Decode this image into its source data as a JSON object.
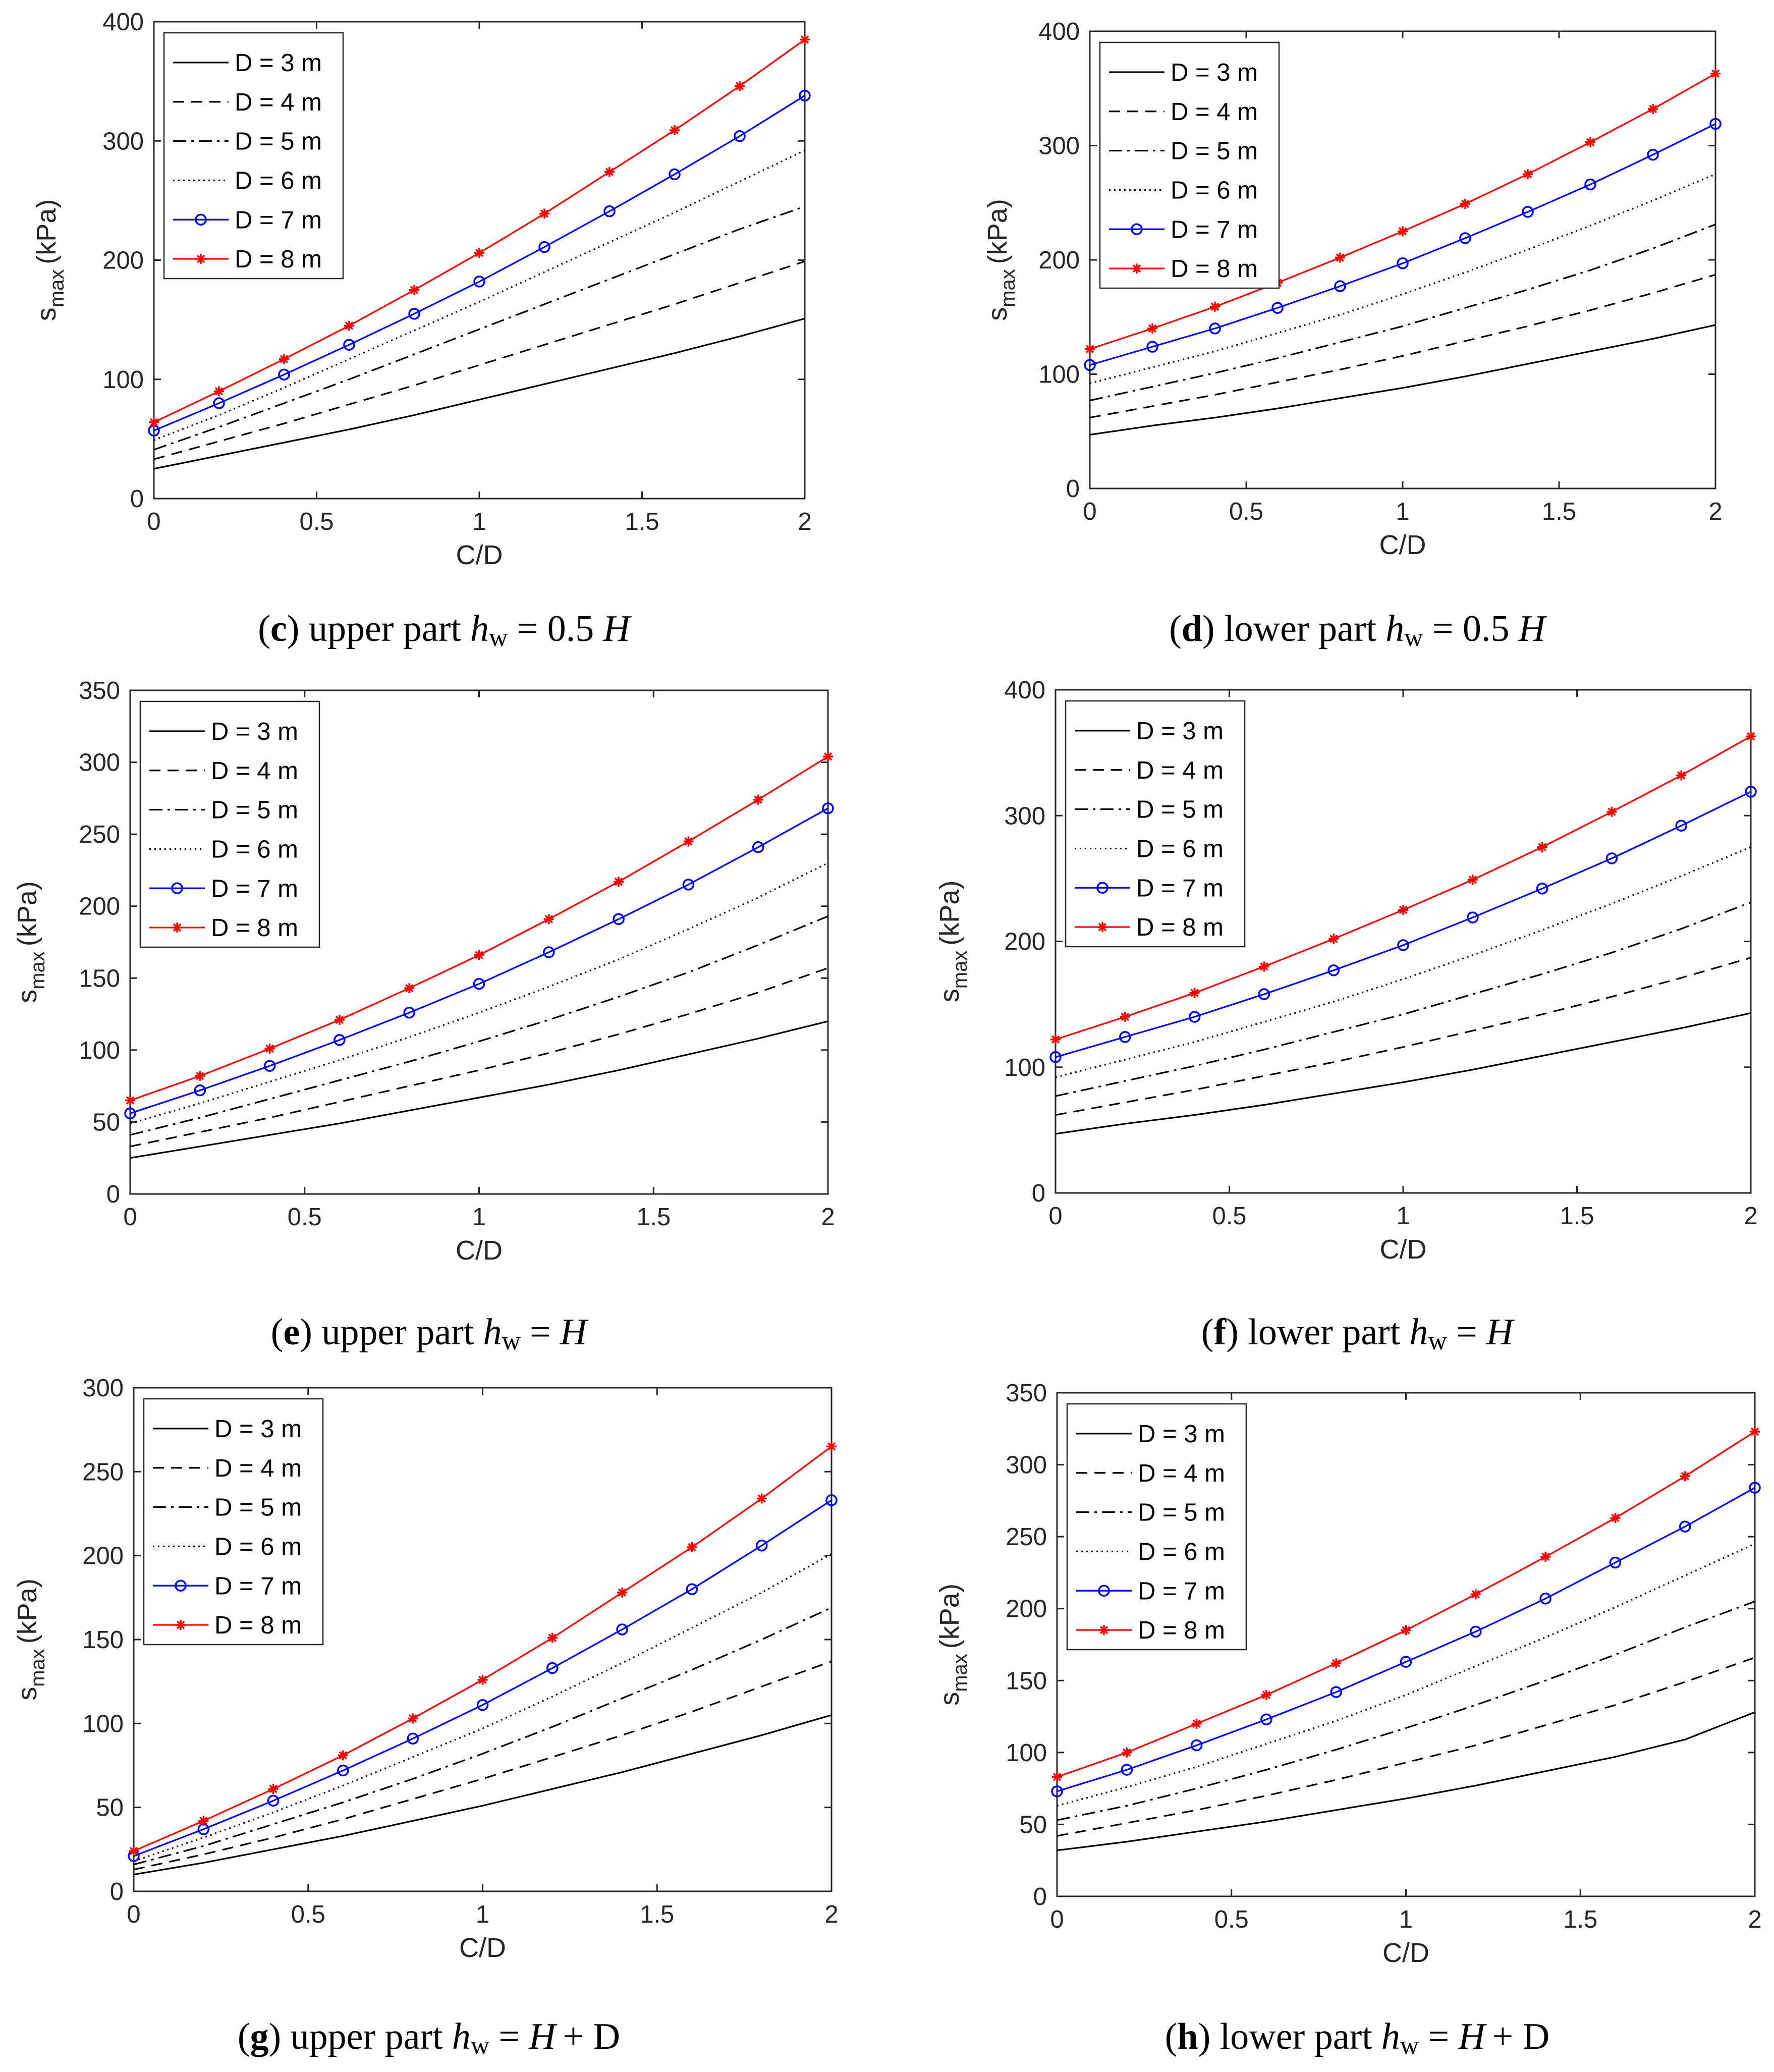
{
  "figure": {
    "legend_labels": [
      "D = 3 m",
      "D = 4 m",
      "D = 5 m",
      "D = 6 m",
      "D = 7 m",
      "D = 8 m"
    ],
    "colors": {
      "black": "#000000",
      "blue": "#0000ff",
      "red": "#ff0000",
      "axis": "#262626"
    }
  },
  "chart_data": [
    {
      "type": "line",
      "panel": "c",
      "caption": {
        "letter": "c",
        "part": "upper part",
        "h": "h",
        "w": "w",
        "expr": "= 0.5",
        "tail": "H",
        "tail2": ""
      },
      "xlabel": "C/D",
      "ylabel": {
        "main": "s",
        "sub": "max",
        "unit": "(kPa)"
      },
      "xlim": [
        0,
        2
      ],
      "ylim": [
        0,
        400
      ],
      "xticks": [
        0,
        0.5,
        1,
        1.5,
        2
      ],
      "xtick_labels": [
        "0",
        "0.5",
        "1",
        "1.5",
        "2"
      ],
      "yticks": [
        0,
        100,
        200,
        300,
        400
      ],
      "ytick_labels": [
        "0",
        "100",
        "200",
        "300",
        "400"
      ],
      "legend_position": "top-left",
      "x": [
        0,
        0.2,
        0.4,
        0.6,
        0.8,
        1.0,
        1.2,
        1.4,
        1.6,
        1.8,
        2.0
      ],
      "series": [
        {
          "name": "D = 3 m",
          "values": [
            25,
            36,
            47,
            58,
            70,
            83,
            96,
            109,
            122,
            136,
            151
          ]
        },
        {
          "name": "D = 4 m",
          "values": [
            33,
            48,
            63,
            79,
            95,
            112,
            129,
            146,
            163,
            181,
            199
          ]
        },
        {
          "name": "D = 5 m",
          "values": [
            41,
            60,
            80,
            100,
            121,
            142,
            163,
            184,
            205,
            226,
            245
          ]
        },
        {
          "name": "D = 6 m",
          "values": [
            49,
            70,
            93,
            117,
            141,
            165,
            190,
            215,
            240,
            266,
            292
          ]
        },
        {
          "name": "D = 7 m",
          "values": [
            57,
            80,
            104,
            129,
            155,
            182,
            211,
            241,
            272,
            304,
            338
          ]
        },
        {
          "name": "D = 8 m",
          "values": [
            64,
            90,
            117,
            145,
            175,
            206,
            239,
            274,
            309,
            346,
            385
          ]
        }
      ]
    },
    {
      "type": "line",
      "panel": "d",
      "caption": {
        "letter": "d",
        "part": "lower part",
        "h": "h",
        "w": "w",
        "expr": "= 0.5",
        "tail": "H",
        "tail2": ""
      },
      "xlabel": "C/D",
      "ylabel": {
        "main": "s",
        "sub": "max",
        "unit": "(kPa)"
      },
      "xlim": [
        0,
        2
      ],
      "ylim": [
        0,
        400
      ],
      "xticks": [
        0,
        0.5,
        1,
        1.5,
        2
      ],
      "xtick_labels": [
        "0",
        "0.5",
        "1",
        "1.5",
        "2"
      ],
      "yticks": [
        0,
        100,
        200,
        300,
        400
      ],
      "ytick_labels": [
        "0",
        "100",
        "200",
        "300",
        "400"
      ],
      "legend_position": "top-left",
      "x": [
        0,
        0.2,
        0.4,
        0.6,
        0.8,
        1.0,
        1.2,
        1.4,
        1.6,
        1.8,
        2.0
      ],
      "series": [
        {
          "name": "D = 3 m",
          "values": [
            47,
            55,
            62,
            70,
            79,
            88,
            98,
            109,
            120,
            131,
            143
          ]
        },
        {
          "name": "D = 4 m",
          "values": [
            62,
            72,
            82,
            93,
            104,
            116,
            129,
            142,
            156,
            171,
            187
          ]
        },
        {
          "name": "D = 5 m",
          "values": [
            77,
            89,
            101,
            114,
            128,
            142,
            158,
            174,
            191,
            210,
            231
          ]
        },
        {
          "name": "D = 6 m",
          "values": [
            92,
            106,
            120,
            136,
            152,
            170,
            189,
            209,
            230,
            252,
            275
          ]
        },
        {
          "name": "D = 7 m",
          "values": [
            108,
            124,
            140,
            158,
            177,
            197,
            219,
            242,
            266,
            292,
            319
          ]
        },
        {
          "name": "D = 8 m",
          "values": [
            122,
            140,
            159,
            180,
            202,
            225,
            249,
            275,
            303,
            332,
            363
          ]
        }
      ]
    },
    {
      "type": "line",
      "panel": "e",
      "caption": {
        "letter": "e",
        "part": "upper part",
        "h": "h",
        "w": "w",
        "expr": "=",
        "tail": "H",
        "tail2": ""
      },
      "xlabel": "C/D",
      "ylabel": {
        "main": "s",
        "sub": "max",
        "unit": "(kPa)"
      },
      "xlim": [
        0,
        2
      ],
      "ylim": [
        0,
        350
      ],
      "xticks": [
        0,
        0.5,
        1,
        1.5,
        2
      ],
      "xtick_labels": [
        "0",
        "0.5",
        "1",
        "1.5",
        "2"
      ],
      "yticks": [
        0,
        50,
        100,
        150,
        200,
        250,
        300,
        350
      ],
      "ytick_labels": [
        "0",
        "50",
        "100",
        "150",
        "200",
        "250",
        "300",
        "350"
      ],
      "legend_position": "top-left",
      "x": [
        0,
        0.2,
        0.4,
        0.6,
        0.8,
        1.0,
        1.2,
        1.4,
        1.6,
        1.8,
        2.0
      ],
      "series": [
        {
          "name": "D = 3 m",
          "values": [
            25,
            33,
            41,
            49,
            58,
            67,
            76,
            86,
            97,
            108,
            120
          ]
        },
        {
          "name": "D = 4 m",
          "values": [
            33,
            43,
            53,
            64,
            75,
            86,
            98,
            111,
            125,
            140,
            157
          ]
        },
        {
          "name": "D = 5 m",
          "values": [
            41,
            53,
            66,
            79,
            92,
            106,
            121,
            137,
            154,
            173,
            193
          ]
        },
        {
          "name": "D = 6 m",
          "values": [
            49,
            63,
            78,
            93,
            109,
            126,
            144,
            163,
            184,
            206,
            230
          ]
        },
        {
          "name": "D = 7 m",
          "values": [
            56,
            72,
            89,
            107,
            126,
            146,
            168,
            191,
            215,
            241,
            268
          ]
        },
        {
          "name": "D = 8 m",
          "values": [
            65,
            82,
            101,
            121,
            143,
            166,
            191,
            217,
            245,
            274,
            304
          ]
        }
      ]
    },
    {
      "type": "line",
      "panel": "f",
      "caption": {
        "letter": "f",
        "part": "lower part",
        "h": "h",
        "w": "w",
        "expr": "=",
        "tail": "H",
        "tail2": ""
      },
      "xlabel": "C/D",
      "ylabel": {
        "main": "s",
        "sub": "max",
        "unit": "(kPa)"
      },
      "xlim": [
        0,
        2
      ],
      "ylim": [
        0,
        400
      ],
      "xticks": [
        0,
        0.5,
        1,
        1.5,
        2
      ],
      "xtick_labels": [
        "0",
        "0.5",
        "1",
        "1.5",
        "2"
      ],
      "yticks": [
        0,
        100,
        200,
        300,
        400
      ],
      "ytick_labels": [
        "0",
        "100",
        "200",
        "300",
        "400"
      ],
      "legend_position": "top-left",
      "x": [
        0,
        0.2,
        0.4,
        0.6,
        0.8,
        1.0,
        1.2,
        1.4,
        1.6,
        1.8,
        2.0
      ],
      "series": [
        {
          "name": "D = 3 m",
          "values": [
            47,
            55,
            62,
            70,
            79,
            88,
            98,
            109,
            120,
            131,
            143
          ]
        },
        {
          "name": "D = 4 m",
          "values": [
            62,
            72,
            82,
            93,
            104,
            116,
            129,
            142,
            156,
            171,
            187
          ]
        },
        {
          "name": "D = 5 m",
          "values": [
            77,
            89,
            101,
            114,
            128,
            142,
            158,
            174,
            191,
            210,
            231
          ]
        },
        {
          "name": "D = 6 m",
          "values": [
            92,
            106,
            120,
            136,
            152,
            170,
            189,
            209,
            230,
            252,
            275
          ]
        },
        {
          "name": "D = 7 m",
          "values": [
            108,
            124,
            140,
            158,
            177,
            197,
            219,
            242,
            266,
            292,
            319
          ]
        },
        {
          "name": "D = 8 m",
          "values": [
            122,
            140,
            159,
            180,
            202,
            225,
            249,
            275,
            303,
            332,
            363
          ]
        }
      ]
    },
    {
      "type": "line",
      "panel": "g",
      "caption": {
        "letter": "g",
        "part": "upper part",
        "h": "h",
        "w": "w",
        "expr": "=",
        "tail": "H",
        "tail2": "+ D"
      },
      "xlabel": "C/D",
      "ylabel": {
        "main": "s",
        "sub": "max",
        "unit": "(kPa)"
      },
      "xlim": [
        0,
        2
      ],
      "ylim": [
        0,
        300
      ],
      "xticks": [
        0,
        0.5,
        1,
        1.5,
        2
      ],
      "xtick_labels": [
        "0",
        "0.5",
        "1",
        "1.5",
        "2"
      ],
      "yticks": [
        0,
        50,
        100,
        150,
        200,
        250,
        300
      ],
      "ytick_labels": [
        "0",
        "50",
        "100",
        "150",
        "200",
        "250",
        "300"
      ],
      "legend_position": "top-left",
      "x": [
        0,
        0.2,
        0.4,
        0.6,
        0.8,
        1.0,
        1.2,
        1.4,
        1.6,
        1.8,
        2.0
      ],
      "series": [
        {
          "name": "D = 3 m",
          "values": [
            10,
            17,
            25,
            33,
            42,
            51,
            61,
            71,
            82,
            93,
            105
          ]
        },
        {
          "name": "D = 4 m",
          "values": [
            13,
            22,
            32,
            43,
            55,
            67,
            80,
            93,
            107,
            122,
            137
          ]
        },
        {
          "name": "D = 5 m",
          "values": [
            16,
            27,
            40,
            53,
            67,
            82,
            98,
            115,
            132,
            150,
            169
          ]
        },
        {
          "name": "D = 6 m",
          "values": [
            18,
            32,
            47,
            63,
            80,
            97,
            116,
            136,
            157,
            178,
            201
          ]
        },
        {
          "name": "D = 7 m",
          "values": [
            21,
            37,
            54,
            72,
            91,
            111,
            133,
            156,
            180,
            206,
            233
          ]
        },
        {
          "name": "D = 8 m",
          "values": [
            24,
            42,
            61,
            81,
            103,
            126,
            151,
            178,
            205,
            234,
            265
          ]
        }
      ]
    },
    {
      "type": "line",
      "panel": "h",
      "caption": {
        "letter": "h",
        "part": "lower part",
        "h": "h",
        "w": "w",
        "expr": "=",
        "tail": "H",
        "tail2": "+ D"
      },
      "xlabel": "C/D",
      "ylabel": {
        "main": "s",
        "sub": "max",
        "unit": "(kPa)"
      },
      "xlim": [
        0,
        2
      ],
      "ylim": [
        0,
        350
      ],
      "xticks": [
        0,
        0.5,
        1,
        1.5,
        2
      ],
      "xtick_labels": [
        "0",
        "0.5",
        "1",
        "1.5",
        "2"
      ],
      "yticks": [
        0,
        50,
        100,
        150,
        200,
        250,
        300,
        350
      ],
      "ytick_labels": [
        "0",
        "50",
        "100",
        "150",
        "200",
        "250",
        "300",
        "350"
      ],
      "legend_position": "top-left",
      "x": [
        0,
        0.2,
        0.4,
        0.6,
        0.8,
        1.0,
        1.2,
        1.4,
        1.6,
        1.8,
        2.0
      ],
      "series": [
        {
          "name": "D = 3 m",
          "values": [
            32,
            38,
            45,
            52,
            60,
            68,
            77,
            87,
            97,
            109,
            128
          ]
        },
        {
          "name": "D = 4 m",
          "values": [
            42,
            51,
            60,
            70,
            81,
            93,
            105,
            119,
            133,
            149,
            166
          ]
        },
        {
          "name": "D = 5 m",
          "values": [
            53,
            63,
            75,
            88,
            102,
            117,
            133,
            150,
            168,
            187,
            205
          ]
        },
        {
          "name": "D = 6 m",
          "values": [
            63,
            76,
            90,
            106,
            122,
            140,
            160,
            180,
            201,
            223,
            245
          ]
        },
        {
          "name": "D = 7 m",
          "values": [
            73,
            88,
            105,
            123,
            142,
            163,
            184,
            207,
            232,
            257,
            284
          ]
        },
        {
          "name": "D = 8 m",
          "values": [
            83,
            100,
            120,
            140,
            162,
            185,
            210,
            236,
            263,
            292,
            323
          ]
        }
      ]
    }
  ]
}
